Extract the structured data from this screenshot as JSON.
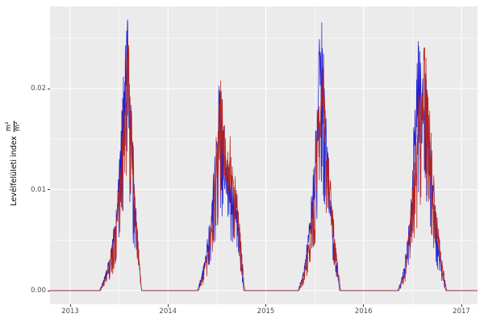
{
  "chart_data": {
    "type": "line",
    "title": "",
    "xlabel": "",
    "ylabel_text": "Levélfelületi index",
    "ylabel_unit_numerator": "m²",
    "ylabel_unit_denominator": "m²",
    "x_ticks": [
      "2013",
      "2014",
      "2015",
      "2016",
      "2017"
    ],
    "x_tick_values": [
      2013,
      2014,
      2015,
      2016,
      2017
    ],
    "x_minor_values": [
      2013.5,
      2014.5,
      2015.5,
      2016.5
    ],
    "y_ticks": [
      "0.00",
      "0.01",
      "0.02"
    ],
    "y_tick_values": [
      0,
      0.01,
      0.02
    ],
    "y_minor_values": [
      0.005,
      0.015,
      0.025
    ],
    "x_range": [
      2012.794,
      2017.165
    ],
    "y_range": [
      -0.00135,
      0.02815
    ],
    "grid": true,
    "legend_position": "none",
    "panel_bg": "#EBEBEB",
    "grid_color": "#FFFFFF",
    "tick_color": "#333333",
    "axis_text_color": "#4D4D4D",
    "noise": {
      "base_min": 0.68,
      "base_span": 0.4,
      "dip_chance": 0.15,
      "dip_factor": 0.55,
      "spike_chance": 0.05,
      "spike_factor": 1.12
    },
    "series": [
      {
        "name": "series-blue",
        "color": "#2020D0",
        "seed": 42,
        "peak_cap": 0.0268,
        "seasonal_peaks": {
          "2013": 0.026,
          "2014": 0.0205,
          "2015": 0.026,
          "2016": 0.0255
        },
        "envelope": [
          [
            2012.79,
            0
          ],
          [
            2013.3,
            0
          ],
          [
            2013.36,
            0.0015
          ],
          [
            2013.42,
            0.004
          ],
          [
            2013.47,
            0.008
          ],
          [
            2013.51,
            0.013
          ],
          [
            2013.55,
            0.021
          ],
          [
            2013.585,
            0.026
          ],
          [
            2013.61,
            0.0205
          ],
          [
            2013.64,
            0.0135
          ],
          [
            2013.665,
            0.009
          ],
          [
            2013.7,
            0.004
          ],
          [
            2013.73,
            0
          ],
          [
            2014.3,
            0
          ],
          [
            2014.36,
            0.002
          ],
          [
            2014.42,
            0.006
          ],
          [
            2014.46,
            0.01
          ],
          [
            2014.5,
            0.016
          ],
          [
            2014.53,
            0.0205
          ],
          [
            2014.56,
            0.016
          ],
          [
            2014.6,
            0.0135
          ],
          [
            2014.65,
            0.012
          ],
          [
            2014.7,
            0.009
          ],
          [
            2014.74,
            0.004
          ],
          [
            2014.775,
            0
          ],
          [
            2015.33,
            0
          ],
          [
            2015.39,
            0.002
          ],
          [
            2015.44,
            0.006
          ],
          [
            2015.48,
            0.01
          ],
          [
            2015.52,
            0.017
          ],
          [
            2015.555,
            0.026
          ],
          [
            2015.59,
            0.021
          ],
          [
            2015.62,
            0.015
          ],
          [
            2015.66,
            0.009
          ],
          [
            2015.7,
            0.005
          ],
          [
            2015.755,
            0
          ],
          [
            2016.35,
            0
          ],
          [
            2016.41,
            0.002
          ],
          [
            2016.46,
            0.006
          ],
          [
            2016.5,
            0.011
          ],
          [
            2016.54,
            0.02
          ],
          [
            2016.565,
            0.0255
          ],
          [
            2016.6,
            0.019
          ],
          [
            2016.63,
            0.022
          ],
          [
            2016.66,
            0.016
          ],
          [
            2016.7,
            0.012
          ],
          [
            2016.75,
            0.006
          ],
          [
            2016.8,
            0.002
          ],
          [
            2016.84,
            0
          ],
          [
            2017.17,
            0
          ]
        ]
      },
      {
        "name": "series-darkred",
        "color": "#B22222",
        "seed": 7,
        "peak_cap": 0.0252,
        "seasonal_peaks": {
          "2013": 0.025,
          "2014": 0.02,
          "2015": 0.024,
          "2016": 0.023
        },
        "envelope": [
          [
            2012.79,
            0
          ],
          [
            2013.31,
            0
          ],
          [
            2013.37,
            0.0015
          ],
          [
            2013.43,
            0.004
          ],
          [
            2013.48,
            0.008
          ],
          [
            2013.52,
            0.013
          ],
          [
            2013.56,
            0.02
          ],
          [
            2013.595,
            0.025
          ],
          [
            2013.62,
            0.019
          ],
          [
            2013.645,
            0.013
          ],
          [
            2013.67,
            0.008
          ],
          [
            2013.7,
            0.004
          ],
          [
            2013.73,
            0
          ],
          [
            2014.31,
            0
          ],
          [
            2014.37,
            0.002
          ],
          [
            2014.43,
            0.006
          ],
          [
            2014.47,
            0.01
          ],
          [
            2014.51,
            0.016
          ],
          [
            2014.545,
            0.02
          ],
          [
            2014.58,
            0.015
          ],
          [
            2014.62,
            0.013
          ],
          [
            2014.67,
            0.012
          ],
          [
            2014.72,
            0.008
          ],
          [
            2014.76,
            0.003
          ],
          [
            2014.785,
            0
          ],
          [
            2015.34,
            0
          ],
          [
            2015.4,
            0.002
          ],
          [
            2015.45,
            0.006
          ],
          [
            2015.49,
            0.01
          ],
          [
            2015.53,
            0.016
          ],
          [
            2015.575,
            0.024
          ],
          [
            2015.61,
            0.019
          ],
          [
            2015.64,
            0.013
          ],
          [
            2015.68,
            0.008
          ],
          [
            2015.72,
            0.004
          ],
          [
            2015.765,
            0
          ],
          [
            2016.36,
            0
          ],
          [
            2016.42,
            0.002
          ],
          [
            2016.47,
            0.006
          ],
          [
            2016.51,
            0.011
          ],
          [
            2016.56,
            0.018
          ],
          [
            2016.6,
            0.021
          ],
          [
            2016.625,
            0.023
          ],
          [
            2016.66,
            0.018
          ],
          [
            2016.7,
            0.013
          ],
          [
            2016.75,
            0.007
          ],
          [
            2016.8,
            0.003
          ],
          [
            2016.85,
            0
          ],
          [
            2017.17,
            0
          ]
        ]
      }
    ]
  }
}
